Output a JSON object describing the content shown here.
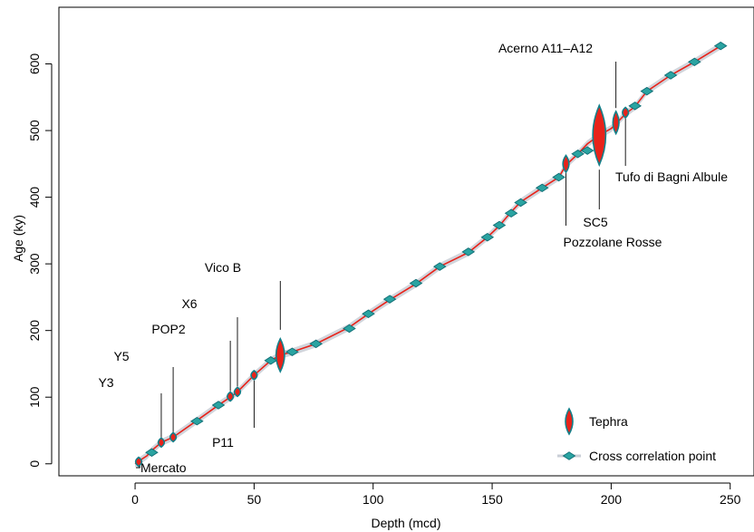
{
  "chart_data": {
    "type": "scatter",
    "xlabel": "Depth (mcd)",
    "ylabel": "Age (ky)",
    "xlim": [
      -32,
      260
    ],
    "ylim": [
      -18,
      685
    ],
    "xticks": [
      0,
      50,
      100,
      150,
      200,
      250
    ],
    "yticks": [
      0,
      100,
      200,
      300,
      400,
      500,
      600
    ],
    "grid": false,
    "legend_position": "bottom-right",
    "colors": {
      "model_line": "#e8231a",
      "uncertainty_band": "#c9ced6",
      "tephra_fill": "#e8231a",
      "tephra_edge": "#13808a",
      "cross_fill": "#2aa3a1",
      "cross_edge": "#106e75"
    },
    "age_model": {
      "x": [
        0,
        2,
        5,
        7,
        11,
        16,
        26,
        35,
        40,
        43,
        50,
        57,
        61,
        66,
        76,
        90,
        98,
        107,
        118,
        128,
        140,
        148,
        153,
        158,
        162,
        171,
        178,
        181,
        186,
        190,
        195,
        200,
        202,
        206,
        210,
        215,
        225,
        235,
        246
      ],
      "y": [
        0,
        5,
        12,
        20,
        32,
        40,
        65,
        88,
        100,
        108,
        133,
        155,
        163,
        168,
        180,
        205,
        225,
        246,
        270,
        296,
        317,
        340,
        357,
        378,
        393,
        414,
        430,
        448,
        465,
        480,
        493,
        503,
        510,
        525,
        536,
        559,
        583,
        603,
        627
      ]
    },
    "series": [
      {
        "name": "Tephra",
        "marker": "spindle",
        "points": [
          {
            "x": 1.5,
            "y": 3,
            "err": 2
          },
          {
            "x": 11,
            "y": 32,
            "err": 2
          },
          {
            "x": 16,
            "y": 40,
            "err": 2
          },
          {
            "x": 40,
            "y": 101,
            "err": 4
          },
          {
            "x": 43,
            "y": 108,
            "err": 4
          },
          {
            "x": 50,
            "y": 133,
            "err": 4
          },
          {
            "x": 61,
            "y": 163,
            "err": 22
          },
          {
            "x": 181,
            "y": 450,
            "err": 10
          },
          {
            "x": 195,
            "y": 493,
            "err": 42
          },
          {
            "x": 202,
            "y": 512,
            "err": 14
          },
          {
            "x": 206,
            "y": 527,
            "err": 5
          }
        ]
      },
      {
        "name": "Cross correlation point",
        "marker": "diamond",
        "points": [
          {
            "x": 7,
            "y": 17
          },
          {
            "x": 26,
            "y": 64
          },
          {
            "x": 35,
            "y": 88
          },
          {
            "x": 57,
            "y": 155
          },
          {
            "x": 66,
            "y": 168
          },
          {
            "x": 76,
            "y": 180
          },
          {
            "x": 90,
            "y": 203
          },
          {
            "x": 98,
            "y": 225
          },
          {
            "x": 107,
            "y": 247
          },
          {
            "x": 118,
            "y": 271
          },
          {
            "x": 128,
            "y": 296
          },
          {
            "x": 140,
            "y": 318
          },
          {
            "x": 148,
            "y": 340
          },
          {
            "x": 153,
            "y": 358
          },
          {
            "x": 158,
            "y": 376
          },
          {
            "x": 162,
            "y": 392
          },
          {
            "x": 171,
            "y": 414
          },
          {
            "x": 178,
            "y": 430
          },
          {
            "x": 186,
            "y": 465
          },
          {
            "x": 190,
            "y": 470
          },
          {
            "x": 210,
            "y": 537
          },
          {
            "x": 215,
            "y": 559
          },
          {
            "x": 225,
            "y": 583
          },
          {
            "x": 235,
            "y": 603
          },
          {
            "x": 246,
            "y": 627
          }
        ]
      }
    ],
    "annotations": [
      {
        "label": "Mercato",
        "x": 2,
        "y": 4
      },
      {
        "label": "Y3",
        "x": 11,
        "y": 32
      },
      {
        "label": "Y5",
        "x": 16,
        "y": 40
      },
      {
        "label": "POP2",
        "x": 40,
        "y": 101
      },
      {
        "label": "X6",
        "x": 43,
        "y": 108
      },
      {
        "label": "P11",
        "x": 50,
        "y": 133
      },
      {
        "label": "Vico B",
        "x": 61,
        "y": 163
      },
      {
        "label": "Pozzolane Rosse",
        "x": 181,
        "y": 450
      },
      {
        "label": "SC5",
        "x": 195,
        "y": 493
      },
      {
        "label": "Acerno A11–A12",
        "x": 202,
        "y": 512
      },
      {
        "label": "Tufo di Bagni Albule",
        "x": 206,
        "y": 527
      }
    ],
    "legend": [
      {
        "label": "Tephra",
        "marker": "spindle"
      },
      {
        "label": "Cross correlation point",
        "marker": "diamond"
      }
    ]
  }
}
